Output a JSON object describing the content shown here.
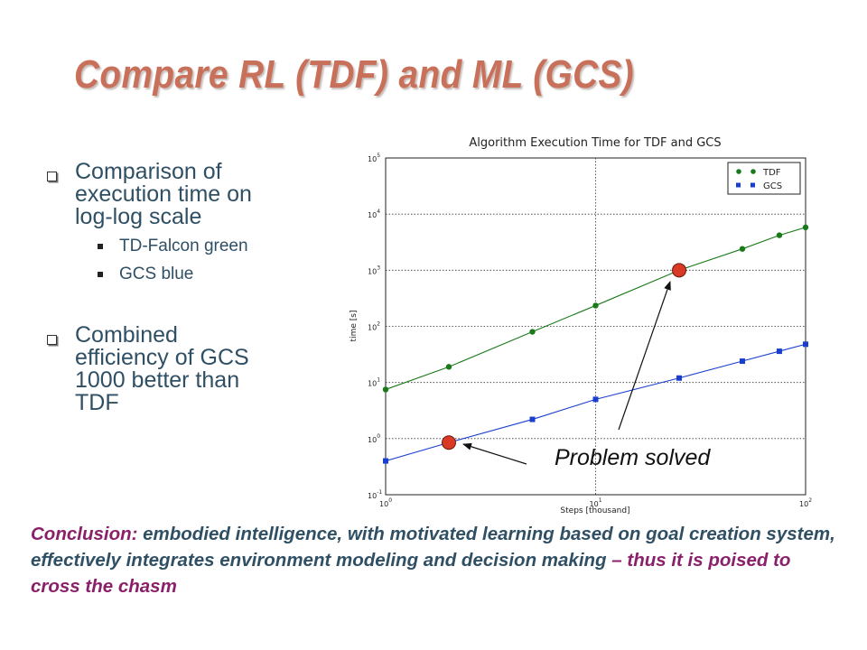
{
  "slide": {
    "title": "Compare RL (TDF) and ML (GCS)",
    "bullets": [
      {
        "lines": [
          "Comparison of",
          "execution time on",
          "log-log scale"
        ],
        "subitems": [
          "TD-Falcon green",
          "GCS blue"
        ]
      },
      {
        "lines": [
          "Combined",
          "efficiency of GCS",
          "1000 better than",
          "TDF"
        ],
        "subitems": []
      }
    ],
    "conclusion": {
      "lead": "Conclusion:",
      "body": " embodied intelligence, with motivated learning based on goal creation system, effectively integrates environment modeling and decision making ",
      "tail": "– thus it is poised to cross the chasm"
    }
  },
  "annotation": "Problem solved",
  "chart_data": {
    "type": "scatter",
    "title": "Algorithm Execution Time for TDF and GCS",
    "xlabel": "Steps [thousand]",
    "ylabel": "time [s]",
    "x_scale": "log",
    "y_scale": "log",
    "xlim": [
      1,
      100
    ],
    "ylim": [
      0.1,
      100000
    ],
    "x_ticks": [
      {
        "value": 1,
        "base": "10",
        "exp": "0"
      },
      {
        "value": 10,
        "base": "10",
        "exp": "1"
      },
      {
        "value": 100,
        "base": "10",
        "exp": "2"
      }
    ],
    "y_ticks": [
      {
        "value": 0.1,
        "base": "10",
        "exp": "-1"
      },
      {
        "value": 1,
        "base": "10",
        "exp": "0"
      },
      {
        "value": 10,
        "base": "10",
        "exp": "1"
      },
      {
        "value": 100,
        "base": "10",
        "exp": "2"
      },
      {
        "value": 1000,
        "base": "10",
        "exp": "3"
      },
      {
        "value": 10000,
        "base": "10",
        "exp": "4"
      },
      {
        "value": 100000,
        "base": "10",
        "exp": "5"
      }
    ],
    "grid": true,
    "legend_position": "top-right",
    "series": [
      {
        "name": "TDF",
        "color": "#1a7a1a",
        "marker": "circle",
        "x": [
          1,
          2,
          5,
          10,
          25,
          50,
          75,
          100
        ],
        "y": [
          7.5,
          19,
          80,
          235,
          1000,
          2400,
          4200,
          5800
        ]
      },
      {
        "name": "GCS",
        "color": "#1a3fcf",
        "marker": "square",
        "x": [
          1,
          2,
          5,
          10,
          25,
          50,
          75,
          100
        ],
        "y": [
          0.4,
          0.85,
          2.2,
          5,
          12,
          24,
          36,
          48
        ]
      }
    ],
    "highlights": [
      {
        "series": "TDF",
        "x": 25,
        "y": 1000
      },
      {
        "series": "GCS",
        "x": 2,
        "y": 0.85
      }
    ]
  }
}
